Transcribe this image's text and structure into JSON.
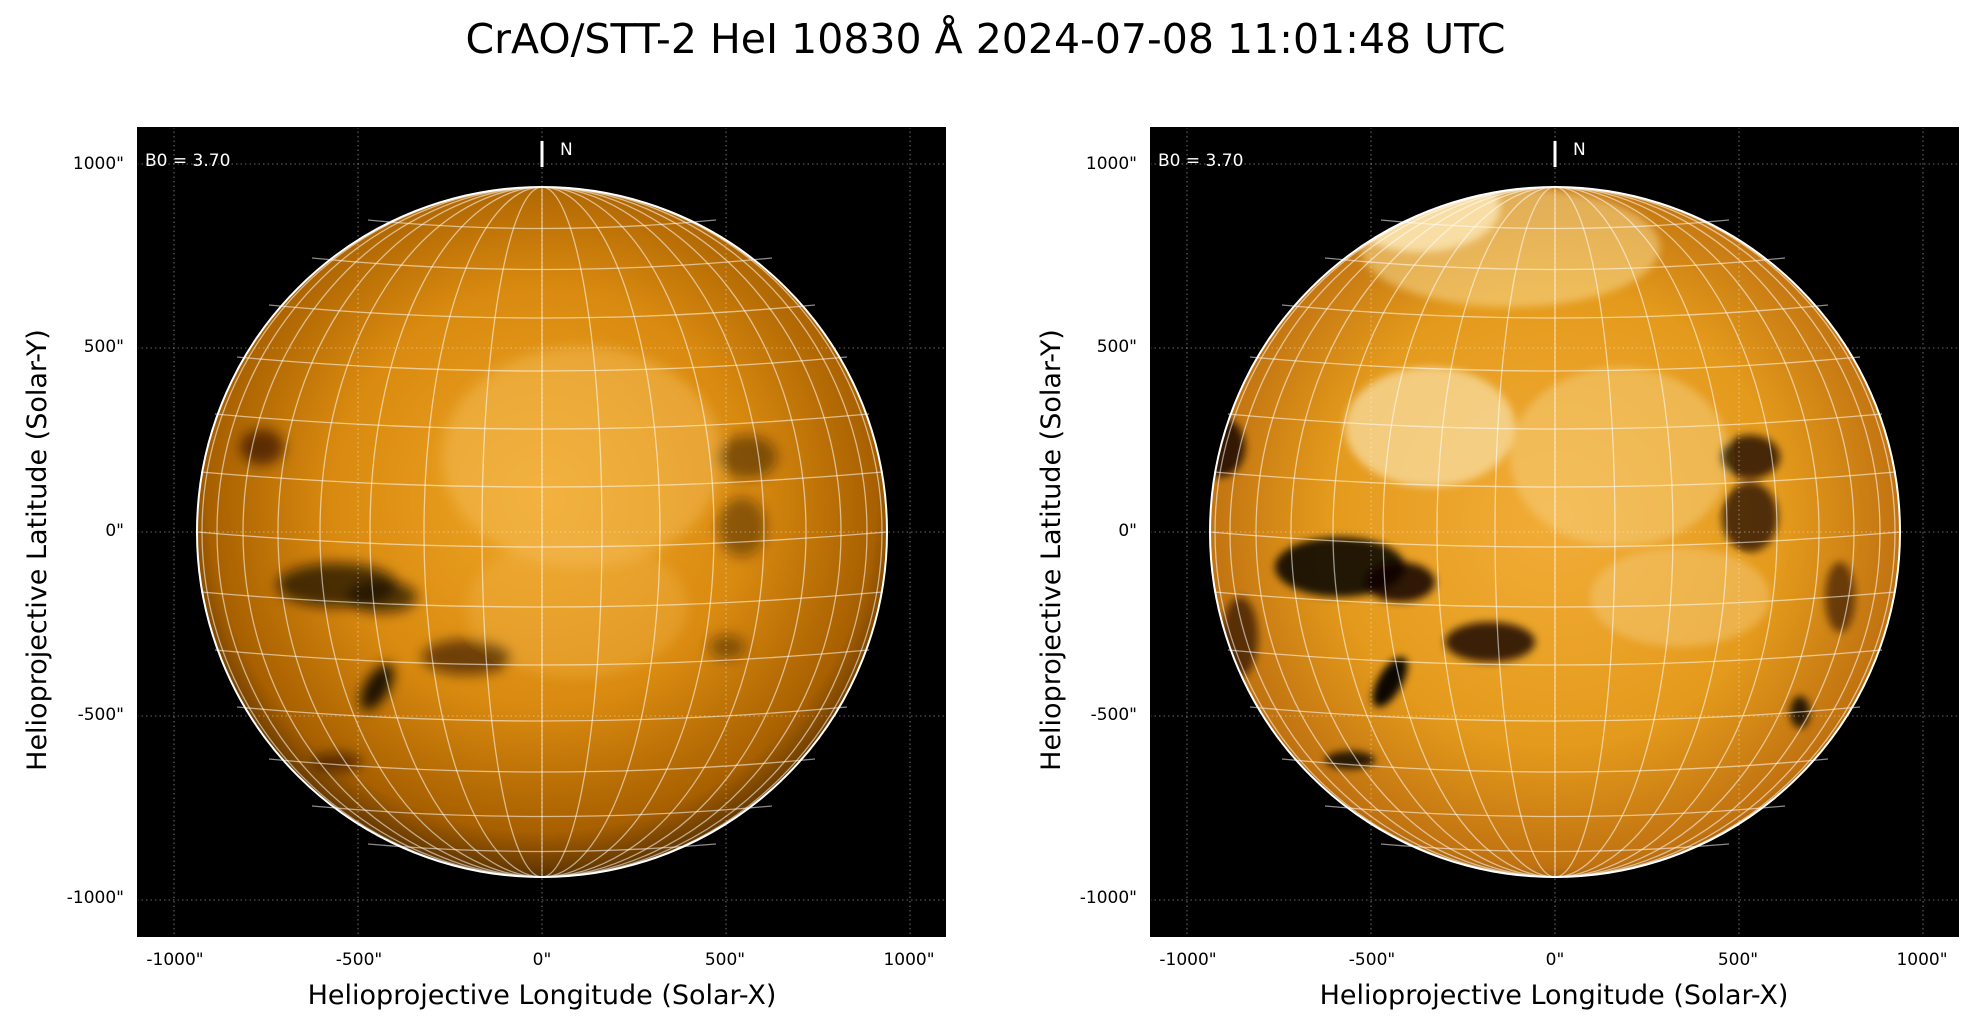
{
  "figure": {
    "title": "CrAO/STT-2 HeI 10830 Å 2024-07-08 11:01:48 UTC"
  },
  "panels": [
    {
      "xlabel": "Helioprojective Longitude (Solar-X)",
      "ylabel": "Helioprojective Latitude (Solar-Y)",
      "b0_label": "B0 = 3.70",
      "north_label": "N",
      "xticks": [
        "-1000\"",
        "-500\"",
        "0\"",
        "500\"",
        "1000\""
      ],
      "yticks": [
        "1000\"",
        "500\"",
        "0\"",
        "-500\"",
        "-1000\""
      ],
      "colors": {
        "disk_bright": "#f0a726",
        "disk_mid": "#d98a10",
        "disk_limb": "#5a3200",
        "background": "#000000"
      }
    },
    {
      "xlabel": "Helioprojective Longitude (Solar-X)",
      "ylabel": "Helioprojective Latitude (Solar-Y)",
      "b0_label": "B0 = 3.70",
      "north_label": "N",
      "xticks": [
        "-1000\"",
        "-500\"",
        "0\"",
        "500\"",
        "1000\""
      ],
      "yticks": [
        "1000\"",
        "500\"",
        "0\"",
        "-500\"",
        "-1000\""
      ],
      "colors": {
        "disk_bright": "#f8d890",
        "disk_mid": "#e49a1c",
        "disk_limb": "#7a4400",
        "background": "#000000"
      }
    }
  ]
}
